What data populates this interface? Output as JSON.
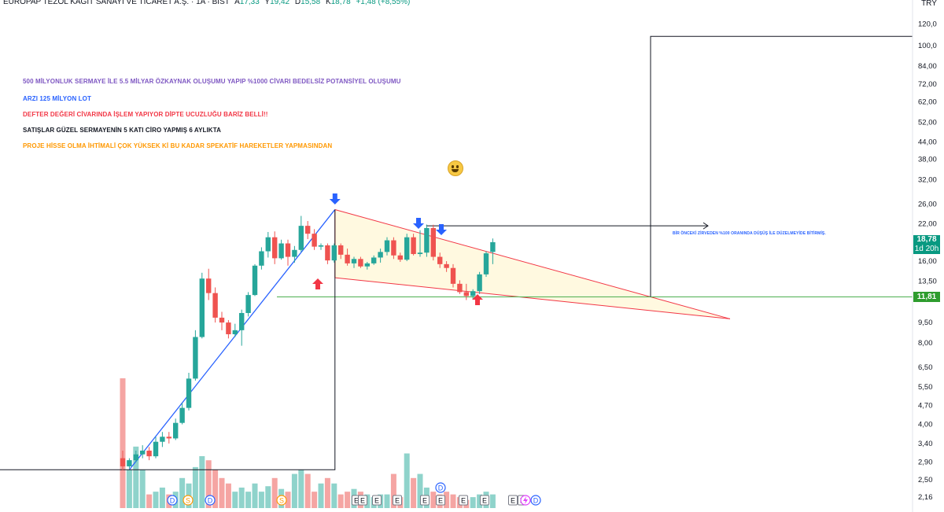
{
  "header": {
    "symbol": "EUROPAP TEZOL KAĞIT SANAYİ VE TİCARET A.Ş. · 1A · BIST",
    "open_label": "A",
    "open": "17,33",
    "high_label": "Y",
    "high": "19,42",
    "low_label": "D",
    "low": "15,58",
    "close_label": "K",
    "close": "18,78",
    "change": "+1,48 (+8,55%)"
  },
  "currency": "TRY",
  "notes": [
    {
      "text": "500 MİLYONLUK SERMAYE İLE 5.5 MİLYAR ÖZKAYNAK OLUŞUMU YAPIP %1000 CİVARI BEDELSİZ POTANSİYEL OLUŞUMU",
      "color": "#7e57c2"
    },
    {
      "text": "ARZI 125 MİLYON LOT",
      "color": "#2962ff"
    },
    {
      "text": "DEFTER DEĞERİ CİVARINDA İŞLEM YAPIYOR DİPTE UCUZLUĞU BARİZ BELLİ!!",
      "color": "#f23645"
    },
    {
      "text": "SATIŞLAR GÜZEL SERMAYENİN 5 KATI CİRO YAPMIŞ 6 AYLIKTA",
      "color": "#131722"
    },
    {
      "text": "PROJE HİSSE OLMA İHTİMALİ ÇOK YÜKSEK Kİ BU KADAR SPEKATİF HAREKETLER YAPMASINDAN",
      "color": "#ff9800"
    }
  ],
  "annotation": "BİR ÖNCEKİ ZİRVEDEN %100 ORANINDA DÜŞÜŞ İLE DÜZELMEYİDE BİTİRMİŞ.",
  "price_badge": {
    "price": "18,78",
    "countdown": "1d 20h",
    "color": "#089981"
  },
  "support_badge": {
    "price": "11,81",
    "color": "#2e9c2e"
  },
  "colors": {
    "up": "#26a69a",
    "down": "#ef5350",
    "vol_up": "#8fd3cb",
    "vol_down": "#f5a5a3",
    "trend": "#2962ff",
    "pattern": "#f23645",
    "fill": "#fff9e0",
    "support": "#4caf50"
  },
  "chart_data": {
    "type": "candlestick",
    "scale": "log",
    "y_ticks": [
      "120,0",
      "100,0",
      "84,00",
      "72,00",
      "62,00",
      "52,00",
      "44,00",
      "38,00",
      "32,00",
      "26,00",
      "22,00",
      "16,00",
      "13,50",
      "9,50",
      "8,00",
      "6,50",
      "5,50",
      "4,70",
      "4,00",
      "3,40",
      "2,90",
      "2,50",
      "2,16"
    ],
    "y_tick_values": [
      120,
      100,
      84,
      72,
      62,
      52,
      44,
      38,
      32,
      26,
      22,
      16,
      13.5,
      9.5,
      8,
      6.5,
      5.5,
      4.7,
      4.0,
      3.4,
      2.9,
      2.5,
      2.16
    ],
    "ylim": [
      2.1,
      122
    ],
    "candles": [
      {
        "o": 3.0,
        "h": 3.2,
        "l": 2.7,
        "c": 2.8
      },
      {
        "o": 2.8,
        "h": 3.0,
        "l": 2.75,
        "c": 2.95
      },
      {
        "o": 2.95,
        "h": 3.2,
        "l": 2.9,
        "c": 3.1
      },
      {
        "o": 3.1,
        "h": 3.35,
        "l": 3.0,
        "c": 3.2
      },
      {
        "o": 3.2,
        "h": 3.3,
        "l": 2.95,
        "c": 3.05
      },
      {
        "o": 3.05,
        "h": 3.6,
        "l": 3.0,
        "c": 3.45
      },
      {
        "o": 3.45,
        "h": 3.75,
        "l": 3.3,
        "c": 3.6
      },
      {
        "o": 3.6,
        "h": 3.75,
        "l": 3.4,
        "c": 3.55
      },
      {
        "o": 3.55,
        "h": 4.2,
        "l": 3.5,
        "c": 4.05
      },
      {
        "o": 4.05,
        "h": 4.8,
        "l": 4.0,
        "c": 4.6
      },
      {
        "o": 4.6,
        "h": 6.2,
        "l": 4.5,
        "c": 5.9
      },
      {
        "o": 5.9,
        "h": 8.9,
        "l": 5.8,
        "c": 8.4
      },
      {
        "o": 8.4,
        "h": 14.5,
        "l": 8.3,
        "c": 13.8
      },
      {
        "o": 13.8,
        "h": 15.0,
        "l": 11.5,
        "c": 12.2
      },
      {
        "o": 12.2,
        "h": 12.8,
        "l": 9.5,
        "c": 9.9
      },
      {
        "o": 9.9,
        "h": 10.4,
        "l": 8.9,
        "c": 9.5
      },
      {
        "o": 9.5,
        "h": 9.7,
        "l": 8.3,
        "c": 8.6
      },
      {
        "o": 8.6,
        "h": 9.4,
        "l": 8.4,
        "c": 8.9
      },
      {
        "o": 8.9,
        "h": 10.6,
        "l": 7.8,
        "c": 10.3
      },
      {
        "o": 10.3,
        "h": 12.3,
        "l": 10.0,
        "c": 12.0
      },
      {
        "o": 12.0,
        "h": 15.6,
        "l": 11.9,
        "c": 15.4
      },
      {
        "o": 15.4,
        "h": 18.0,
        "l": 14.9,
        "c": 17.4
      },
      {
        "o": 17.4,
        "h": 20.5,
        "l": 16.5,
        "c": 19.6
      },
      {
        "o": 19.6,
        "h": 20.6,
        "l": 15.6,
        "c": 16.4
      },
      {
        "o": 16.4,
        "h": 19.2,
        "l": 16.2,
        "c": 18.6
      },
      {
        "o": 18.6,
        "h": 19.2,
        "l": 15.4,
        "c": 16.6
      },
      {
        "o": 16.6,
        "h": 18.2,
        "l": 15.8,
        "c": 17.6
      },
      {
        "o": 17.6,
        "h": 23.5,
        "l": 17.3,
        "c": 21.6
      },
      {
        "o": 21.6,
        "h": 22.5,
        "l": 19.3,
        "c": 20.2
      },
      {
        "o": 20.2,
        "h": 21.0,
        "l": 17.6,
        "c": 18.1
      },
      {
        "o": 18.1,
        "h": 18.6,
        "l": 17.6,
        "c": 18.3
      },
      {
        "o": 18.3,
        "h": 18.6,
        "l": 15.6,
        "c": 16.1
      },
      {
        "o": 16.1,
        "h": 18.6,
        "l": 15.8,
        "c": 18.3
      },
      {
        "o": 18.3,
        "h": 18.6,
        "l": 16.3,
        "c": 16.9
      },
      {
        "o": 16.9,
        "h": 17.8,
        "l": 15.4,
        "c": 15.7
      },
      {
        "o": 15.7,
        "h": 16.6,
        "l": 15.1,
        "c": 16.3
      },
      {
        "o": 16.3,
        "h": 16.6,
        "l": 15.1,
        "c": 15.3
      },
      {
        "o": 15.3,
        "h": 15.9,
        "l": 14.9,
        "c": 15.7
      },
      {
        "o": 15.7,
        "h": 16.8,
        "l": 15.5,
        "c": 16.5
      },
      {
        "o": 16.5,
        "h": 17.8,
        "l": 15.8,
        "c": 17.3
      },
      {
        "o": 17.3,
        "h": 19.6,
        "l": 16.8,
        "c": 19.1
      },
      {
        "o": 19.1,
        "h": 19.6,
        "l": 16.3,
        "c": 16.8
      },
      {
        "o": 16.8,
        "h": 17.2,
        "l": 15.9,
        "c": 16.2
      },
      {
        "o": 16.2,
        "h": 20.2,
        "l": 16.0,
        "c": 19.6
      },
      {
        "o": 19.6,
        "h": 20.2,
        "l": 16.8,
        "c": 17.0
      },
      {
        "o": 17.0,
        "h": 20.8,
        "l": 16.6,
        "c": 17.2
      },
      {
        "o": 17.2,
        "h": 21.8,
        "l": 16.6,
        "c": 21.2
      },
      {
        "o": 21.2,
        "h": 21.8,
        "l": 16.1,
        "c": 16.6
      },
      {
        "o": 16.6,
        "h": 17.2,
        "l": 15.1,
        "c": 15.6
      },
      {
        "o": 15.6,
        "h": 16.0,
        "l": 14.6,
        "c": 15.1
      },
      {
        "o": 15.1,
        "h": 15.6,
        "l": 12.8,
        "c": 13.2
      },
      {
        "o": 13.2,
        "h": 13.6,
        "l": 12.1,
        "c": 12.3
      },
      {
        "o": 12.3,
        "h": 13.2,
        "l": 11.5,
        "c": 11.9
      },
      {
        "o": 11.9,
        "h": 12.6,
        "l": 11.6,
        "c": 12.4
      },
      {
        "o": 12.4,
        "h": 14.6,
        "l": 12.1,
        "c": 14.3
      },
      {
        "o": 14.3,
        "h": 17.4,
        "l": 14.0,
        "c": 17.1
      },
      {
        "o": 17.3,
        "h": 19.4,
        "l": 15.6,
        "c": 18.8
      }
    ],
    "volume": [
      95,
      28,
      45,
      28,
      10,
      12,
      15,
      10,
      12,
      22,
      18,
      30,
      38,
      35,
      28,
      22,
      18,
      12,
      15,
      12,
      18,
      12,
      16,
      22,
      14,
      12,
      25,
      28,
      25,
      12,
      18,
      22,
      18,
      10,
      12,
      14,
      12,
      10,
      8,
      10,
      10,
      25,
      8,
      40,
      22,
      25,
      15,
      12,
      10,
      12,
      10,
      8,
      6,
      8,
      10,
      12,
      10
    ],
    "support_level": "11,81"
  }
}
